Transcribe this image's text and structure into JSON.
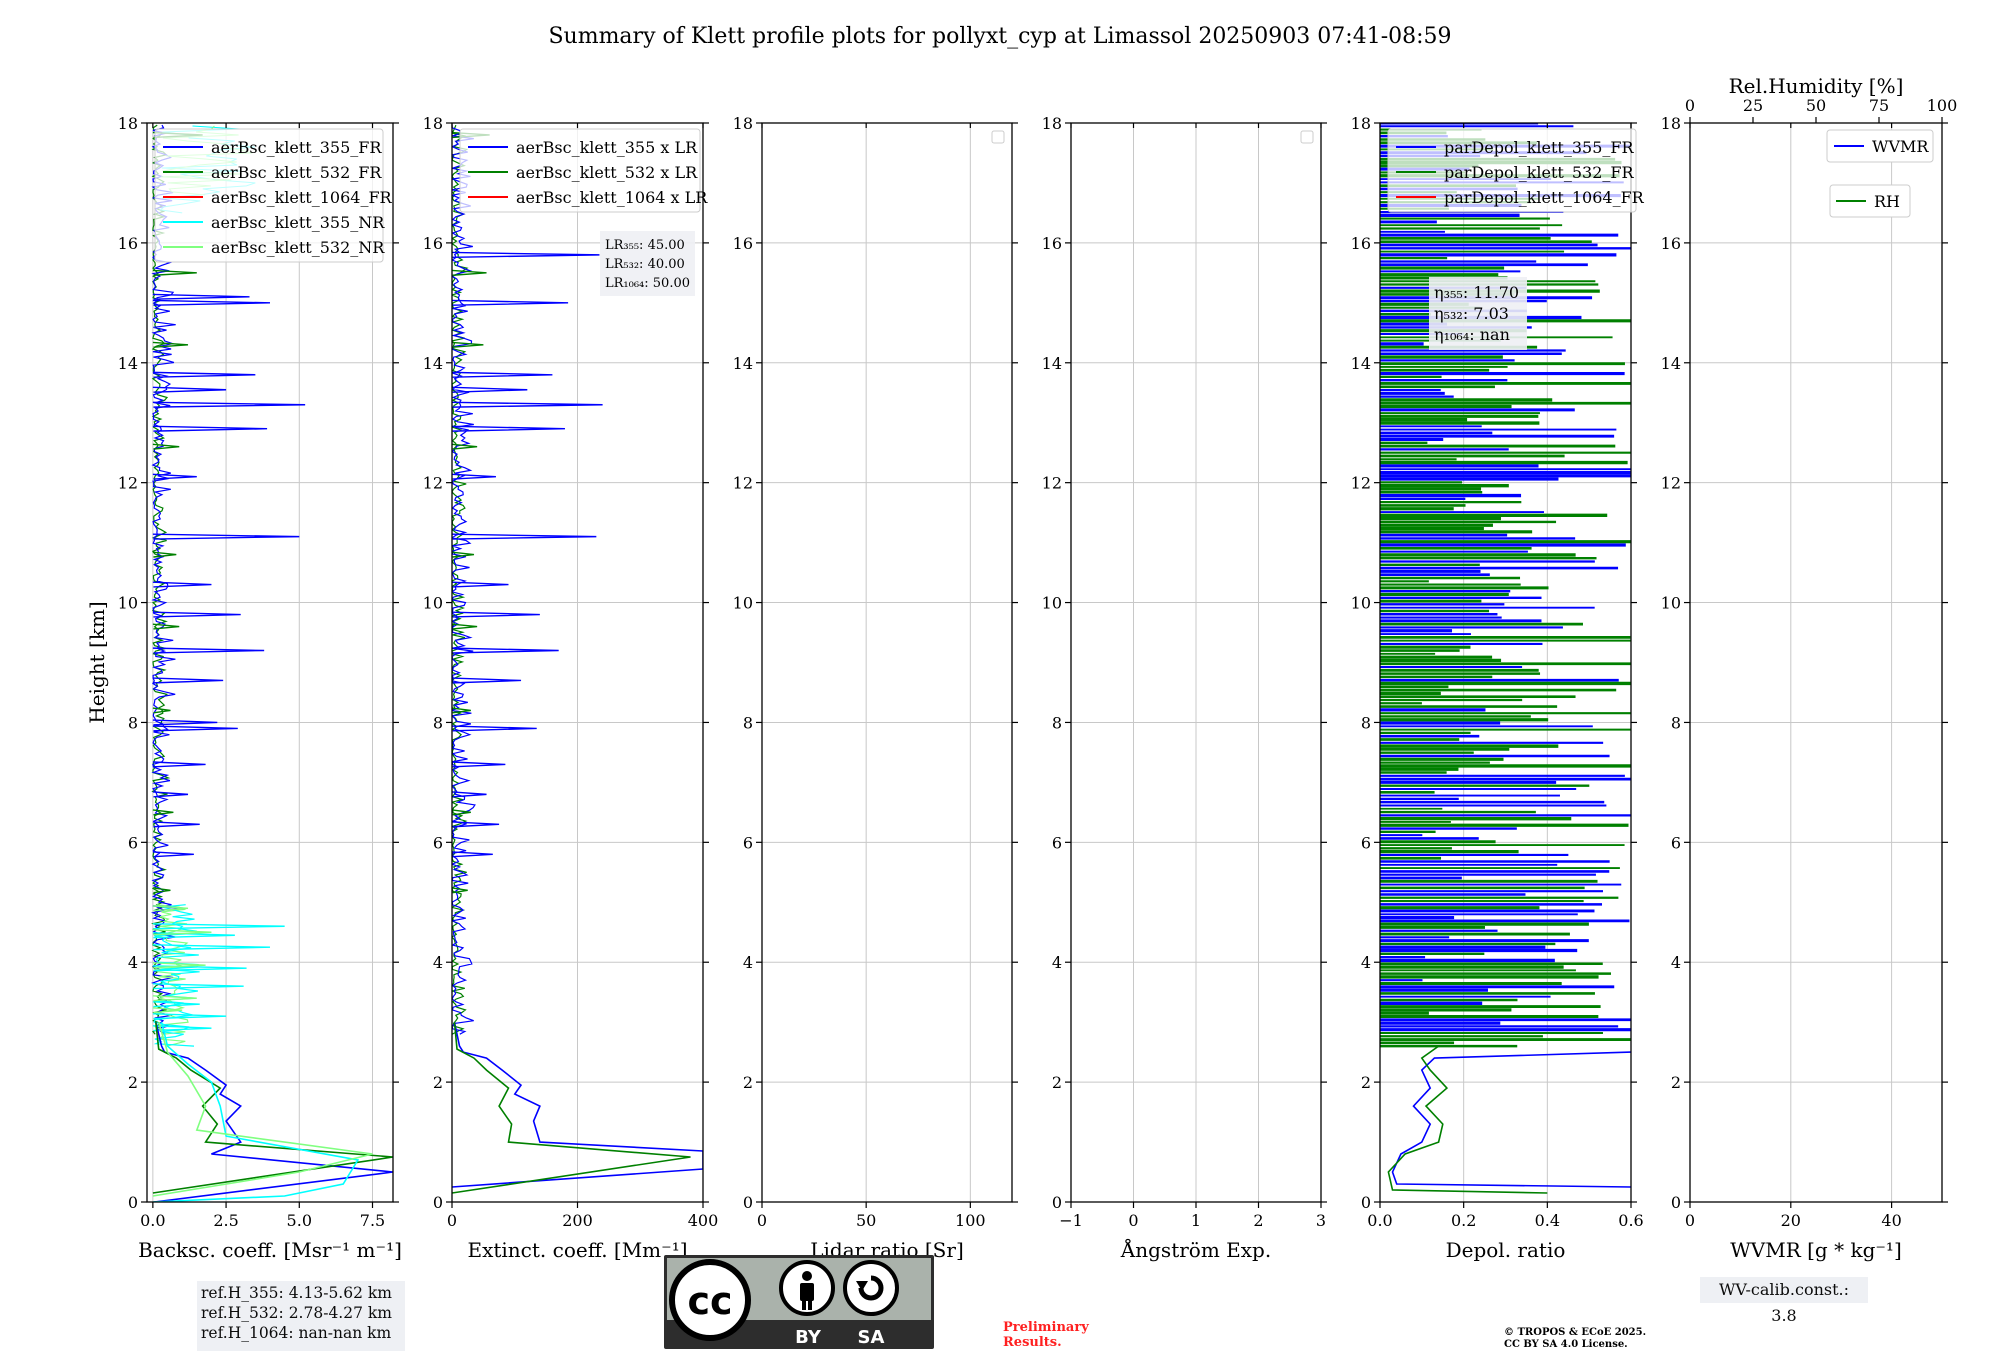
{
  "title": "Summary of Klett profile plots for pollyxt_cyp at Limassol 20250903 07:41-08:59",
  "colors": {
    "c355": "#0000ff",
    "c532": "#008000",
    "c1064": "#ff0000",
    "c355nr": "#00ffff",
    "c532nr": "#80ff80",
    "grid": "#c8c8c8"
  },
  "chart_data": [
    {
      "id": "bsc",
      "type": "line",
      "xlabel": "Backsc. coeff. [Msr⁻¹ m⁻¹]",
      "ylabel": "Height [km]",
      "xlim": [
        -0.2,
        8.2
      ],
      "ylim": [
        0,
        18
      ],
      "xticks": [
        0,
        2.5,
        5.0,
        7.5
      ],
      "xticklabels": [
        "0.0",
        "2.5",
        "5.0",
        "7.5"
      ],
      "yticks": [
        0,
        2,
        4,
        6,
        8,
        10,
        12,
        14,
        16,
        18
      ],
      "legend": [
        "aerBsc_klett_355_FR",
        "aerBsc_klett_532_FR",
        "aerBsc_klett_1064_FR",
        "aerBsc_klett_355_NR",
        "aerBsc_klett_532_NR"
      ],
      "series": [
        {
          "name": "aerBsc_klett_355_FR",
          "color": "c355",
          "points": [
            [
              0.05,
              0.0
            ],
            [
              8.2,
              0.5
            ],
            [
              2.0,
              0.8
            ],
            [
              3.0,
              1.0
            ],
            [
              2.5,
              1.35
            ],
            [
              3.0,
              1.6
            ],
            [
              2.3,
              1.8
            ],
            [
              2.5,
              1.95
            ],
            [
              1.8,
              2.2
            ],
            [
              1.2,
              2.4
            ],
            [
              0.4,
              2.5
            ],
            [
              0.3,
              2.6
            ],
            [
              0.2,
              2.8
            ],
            [
              0.1,
              3.0
            ]
          ]
        },
        {
          "name": "aerBsc_klett_532_FR",
          "color": "c532",
          "points": [
            [
              0.0,
              0.15
            ],
            [
              8.2,
              0.75
            ],
            [
              1.8,
              1.0
            ],
            [
              2.2,
              1.3
            ],
            [
              1.7,
              1.6
            ],
            [
              2.3,
              1.9
            ],
            [
              1.3,
              2.2
            ],
            [
              0.8,
              2.4
            ],
            [
              0.2,
              2.55
            ],
            [
              0.1,
              3.0
            ]
          ]
        },
        {
          "name": "aerBsc_klett_355_NR",
          "color": "c355nr",
          "points": [
            [
              0.0,
              0.0
            ],
            [
              4.5,
              0.1
            ],
            [
              6.5,
              0.3
            ],
            [
              7.0,
              0.7
            ],
            [
              2.5,
              1.1
            ],
            [
              2.3,
              1.6
            ],
            [
              2.0,
              2.0
            ],
            [
              1.2,
              2.3
            ],
            [
              0.5,
              2.6
            ],
            [
              0.3,
              3.0
            ]
          ]
        },
        {
          "name": "aerBsc_klett_532_NR",
          "color": "c532nr",
          "points": [
            [
              0.0,
              0.1
            ],
            [
              5.0,
              0.5
            ],
            [
              7.5,
              0.8
            ],
            [
              1.5,
              1.2
            ],
            [
              1.8,
              1.6
            ],
            [
              1.2,
              2.1
            ],
            [
              0.5,
              2.5
            ],
            [
              0.2,
              3.0
            ]
          ]
        }
      ],
      "spikes": [
        {
          "color": "c355",
          "pairs": [
            [
              3.3,
              15.1
            ],
            [
              4.0,
              15.0
            ],
            [
              3.5,
              13.8
            ],
            [
              5.2,
              13.3
            ],
            [
              3.9,
              12.9
            ],
            [
              5.0,
              11.1
            ],
            [
              3.0,
              9.8
            ],
            [
              3.8,
              9.2
            ],
            [
              2.4,
              8.7
            ],
            [
              2.9,
              7.9
            ],
            [
              1.8,
              7.3
            ],
            [
              1.4,
              5.8
            ],
            [
              2.5,
              13.55
            ],
            [
              2.0,
              10.3
            ],
            [
              1.6,
              6.3
            ],
            [
              1.2,
              6.8
            ],
            [
              1.5,
              12.1
            ],
            [
              2.2,
              8.0
            ],
            [
              1.1,
              4.9
            ]
          ]
        },
        {
          "color": "c532",
          "pairs": [
            [
              1.7,
              17.8
            ],
            [
              1.5,
              15.5
            ],
            [
              1.2,
              14.3
            ],
            [
              0.9,
              12.6
            ],
            [
              0.8,
              10.8
            ],
            [
              0.9,
              9.6
            ],
            [
              0.6,
              8.2
            ],
            [
              0.7,
              6.5
            ],
            [
              0.6,
              5.2
            ]
          ]
        },
        {
          "color": "c355nr",
          "pairs": [
            [
              4.5,
              4.6
            ],
            [
              4.0,
              4.25
            ],
            [
              3.1,
              3.6
            ],
            [
              3.2,
              3.9
            ],
            [
              2.5,
              3.1
            ],
            [
              2.8,
              4.45
            ],
            [
              1.6,
              3.3
            ],
            [
              2.0,
              2.9
            ]
          ]
        },
        {
          "color": "c532nr",
          "pairs": [
            [
              2.0,
              4.5
            ],
            [
              1.8,
              3.95
            ],
            [
              1.5,
              3.4
            ],
            [
              1.2,
              4.9
            ],
            [
              1.0,
              3.2
            ]
          ]
        }
      ]
    },
    {
      "id": "ext",
      "type": "line",
      "xlabel": "Extinct. coeff. [Mm⁻¹]",
      "xlim": [
        0,
        400
      ],
      "ylim": [
        0,
        18
      ],
      "xticks": [
        0,
        200,
        400
      ],
      "xticklabels": [
        "0",
        "200",
        "400"
      ],
      "yticks": [
        0,
        2,
        4,
        6,
        8,
        10,
        12,
        14,
        16,
        18
      ],
      "legend": [
        "aerBsc_klett_355 x LR",
        "aerBsc_klett_532 x LR",
        "aerBsc_klett_1064 x LR"
      ],
      "series": [
        {
          "name": "aerBsc_klett_355 x LR",
          "color": "c355",
          "points": [
            [
              0,
              0.25
            ],
            [
              400,
              0.55
            ],
            [
              400,
              0.85
            ],
            [
              140,
              1.0
            ],
            [
              130,
              1.35
            ],
            [
              140,
              1.6
            ],
            [
              100,
              1.8
            ],
            [
              110,
              1.95
            ],
            [
              80,
              2.2
            ],
            [
              55,
              2.4
            ],
            [
              18,
              2.5
            ],
            [
              12,
              2.6
            ],
            [
              8,
              2.8
            ],
            [
              4,
              3.0
            ]
          ]
        },
        {
          "name": "aerBsc_klett_532 x LR",
          "color": "c532",
          "points": [
            [
              0,
              0.15
            ],
            [
              380,
              0.75
            ],
            [
              90,
              1.0
            ],
            [
              95,
              1.3
            ],
            [
              75,
              1.6
            ],
            [
              90,
              1.9
            ],
            [
              55,
              2.2
            ],
            [
              35,
              2.4
            ],
            [
              8,
              2.55
            ],
            [
              4,
              3.0
            ]
          ]
        }
      ],
      "spikes": [
        {
          "color": "c355",
          "pairs": [
            [
              235,
              15.8
            ],
            [
              185,
              15.0
            ],
            [
              160,
              13.8
            ],
            [
              240,
              13.3
            ],
            [
              180,
              12.9
            ],
            [
              230,
              11.1
            ],
            [
              140,
              9.8
            ],
            [
              170,
              9.2
            ],
            [
              110,
              8.7
            ],
            [
              135,
              7.9
            ],
            [
              85,
              7.3
            ],
            [
              65,
              5.8
            ],
            [
              120,
              13.55
            ],
            [
              90,
              10.3
            ],
            [
              75,
              6.3
            ],
            [
              55,
              6.8
            ],
            [
              70,
              12.1
            ]
          ]
        },
        {
          "color": "c532",
          "pairs": [
            [
              60,
              17.8
            ],
            [
              55,
              15.5
            ],
            [
              50,
              14.3
            ],
            [
              40,
              12.6
            ],
            [
              35,
              10.8
            ],
            [
              40,
              9.6
            ],
            [
              30,
              8.2
            ],
            [
              30,
              6.5
            ],
            [
              25,
              5.2
            ]
          ]
        }
      ],
      "annotation": [
        "LR₃₅₅: 45.00",
        "LR₅₃₂: 40.00",
        "LR₁₀₆₄: 50.00"
      ]
    },
    {
      "id": "lr",
      "type": "line",
      "xlabel": "Lidar ratio [Sr]",
      "xlim": [
        0,
        120
      ],
      "ylim": [
        0,
        18
      ],
      "xticks": [
        0,
        50,
        100
      ],
      "xticklabels": [
        "0",
        "50",
        "100"
      ],
      "yticks": [
        0,
        2,
        4,
        6,
        8,
        10,
        12,
        14,
        16,
        18
      ],
      "series": []
    },
    {
      "id": "ang",
      "type": "line",
      "xlabel": "Ångström Exp.",
      "xlim": [
        -1,
        3
      ],
      "ylim": [
        0,
        18
      ],
      "xticks": [
        -1,
        0,
        1,
        2,
        3
      ],
      "xticklabels": [
        "−1",
        "0",
        "1",
        "2",
        "3"
      ],
      "yticks": [
        0,
        2,
        4,
        6,
        8,
        10,
        12,
        14,
        16,
        18
      ],
      "series": []
    },
    {
      "id": "depol",
      "type": "line",
      "xlabel": "Depol. ratio",
      "xlim": [
        0,
        0.6
      ],
      "ylim": [
        0,
        18
      ],
      "xticks": [
        0,
        0.2,
        0.4,
        0.6
      ],
      "xticklabels": [
        "0.0",
        "0.2",
        "0.4",
        "0.6"
      ],
      "yticks": [
        0,
        2,
        4,
        6,
        8,
        10,
        12,
        14,
        16,
        18
      ],
      "legend": [
        "parDepol_klett_355_FR",
        "parDepol_klett_532_FR",
        "parDepol_klett_1064_FR"
      ],
      "series": [
        {
          "name": "parDepol_klett_355_FR",
          "color": "c355",
          "points": [
            [
              0.6,
              0.25
            ],
            [
              0.04,
              0.3
            ],
            [
              0.03,
              0.5
            ],
            [
              0.05,
              0.8
            ],
            [
              0.1,
              1.0
            ],
            [
              0.12,
              1.3
            ],
            [
              0.08,
              1.6
            ],
            [
              0.12,
              1.9
            ],
            [
              0.1,
              2.2
            ],
            [
              0.13,
              2.4
            ],
            [
              0.6,
              2.5
            ]
          ]
        },
        {
          "name": "parDepol_klett_532_FR",
          "color": "c532",
          "points": [
            [
              0.4,
              0.15
            ],
            [
              0.03,
              0.2
            ],
            [
              0.02,
              0.5
            ],
            [
              0.06,
              0.8
            ],
            [
              0.14,
              1.0
            ],
            [
              0.15,
              1.3
            ],
            [
              0.11,
              1.6
            ],
            [
              0.16,
              1.9
            ],
            [
              0.12,
              2.2
            ],
            [
              0.1,
              2.4
            ],
            [
              0.14,
              2.6
            ]
          ]
        }
      ],
      "annotation": [
        "η₃₅₅: 11.70",
        "η₅₃₂: 7.03",
        "η₁₀₆₄: nan"
      ]
    },
    {
      "id": "wv",
      "type": "line",
      "xlabel": "WVMR [g * kg⁻¹]",
      "top_xlabel": "Rel.Humidity [%]",
      "xlim": [
        0,
        50
      ],
      "ylim": [
        0,
        18
      ],
      "xticks": [
        0,
        20,
        40
      ],
      "xticklabels": [
        "0",
        "20",
        "40"
      ],
      "top_xticks": [
        0,
        25,
        50,
        75,
        100
      ],
      "yticks": [
        0,
        2,
        4,
        6,
        8,
        10,
        12,
        14,
        16,
        18
      ],
      "legend": [
        "WVMR",
        "RH"
      ],
      "series": []
    }
  ],
  "footer": {
    "ref_lines": [
      "ref.H_355: 4.13-5.62 km",
      "ref.H_532: 2.78-4.27 km",
      "ref.H_1064: nan-nan km"
    ],
    "license_by": "BY",
    "license_sa": "SA",
    "license_cc": "cc",
    "preliminary": [
      "Preliminary",
      "Results."
    ],
    "copyright": [
      "© TROPOS & ECoE 2025.",
      "CC BY SA 4.0 License."
    ],
    "wv_calib": "WV-calib.const.: 3.8"
  }
}
